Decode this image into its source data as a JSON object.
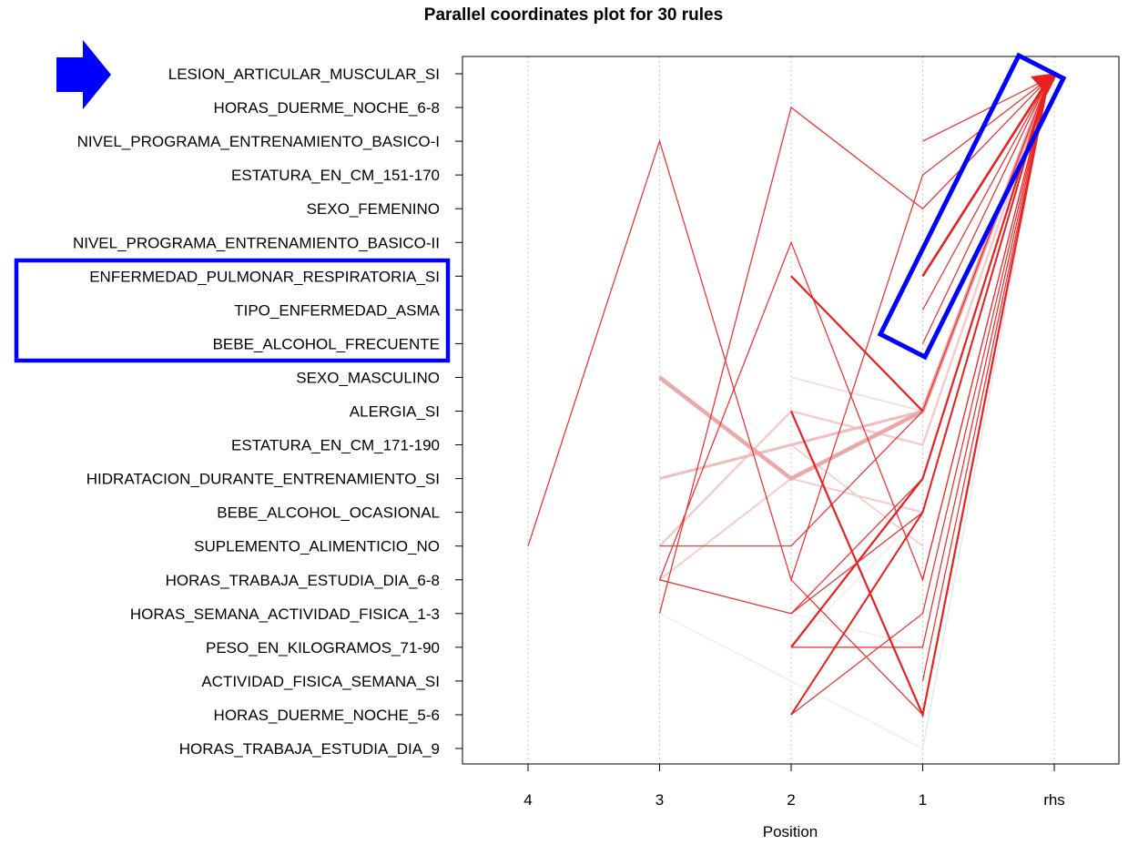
{
  "chart_data": {
    "type": "parallel-coordinates",
    "title": "Parallel coordinates plot for 30 rules",
    "xlabel": "Position",
    "x_ticks": [
      "4",
      "3",
      "2",
      "1",
      "rhs"
    ],
    "items": [
      "LESION_ARTICULAR_MUSCULAR_SI",
      "HORAS_DUERME_NOCHE_6-8",
      "NIVEL_PROGRAMA_ENTRENAMIENTO_BASICO-I",
      "ESTATURA_EN_CM_151-170",
      "SEXO_FEMENINO",
      "NIVEL_PROGRAMA_ENTRENAMIENTO_BASICO-II",
      "ENFERMEDAD_PULMONAR_RESPIRATORIA_SI",
      "TIPO_ENFERMEDAD_ASMA",
      "BEBE_ALCOHOL_FRECUENTE",
      "SEXO_MASCULINO",
      "ALERGIA_SI",
      "ESTATURA_EN_CM_171-190",
      "HIDRATACION_DURANTE_ENTRENAMIENTO_SI",
      "BEBE_ALCOHOL_OCASIONAL",
      "SUPLEMENTO_ALIMENTICIO_NO",
      "HORAS_TRABAJA_ESTUDIA_DIA_6-8",
      "HORAS_SEMANA_ACTIVIDAD_FISICA_1-3",
      "PESO_EN_KILOGRAMOS_71-90",
      "ACTIVIDAD_FISICA_SEMANA_SI",
      "HORAS_DUERME_NOCHE_5-6",
      "HORAS_TRABAJA_ESTUDIA_DIA_9"
    ],
    "rules": [
      {
        "path": [
          [
            4,
            14
          ],
          [
            3,
            2
          ],
          [
            2,
            15
          ],
          [
            1,
            3
          ],
          [
            0,
            0
          ]
        ],
        "color": "#ee2a2a",
        "w": 1.2
      },
      {
        "path": [
          [
            3,
            16
          ],
          [
            2,
            1
          ],
          [
            1,
            4
          ],
          [
            0,
            0
          ]
        ],
        "color": "#ee2a2a",
        "w": 1.2
      },
      {
        "path": [
          [
            3,
            15
          ],
          [
            2,
            16
          ],
          [
            1,
            13
          ],
          [
            0,
            0
          ]
        ],
        "color": "#ee2a2a",
        "w": 1.2
      },
      {
        "path": [
          [
            3,
            15
          ],
          [
            2,
            5
          ],
          [
            1,
            15
          ],
          [
            0,
            0
          ]
        ],
        "color": "#ee2a2a",
        "w": 1.2
      },
      {
        "path": [
          [
            3,
            14
          ],
          [
            2,
            14
          ],
          [
            1,
            10
          ],
          [
            0,
            0
          ]
        ],
        "color": "#ee2a2a",
        "w": 1.2
      },
      {
        "path": [
          [
            2,
            6
          ],
          [
            1,
            10
          ]
        ],
        "color": "#e82020",
        "w": 2.2
      },
      {
        "path": [
          [
            2,
            10
          ],
          [
            1,
            19
          ],
          [
            0,
            0
          ]
        ],
        "color": "#e82020",
        "w": 2.2
      },
      {
        "path": [
          [
            2,
            17
          ],
          [
            1,
            12
          ],
          [
            0,
            0
          ]
        ],
        "color": "#e82020",
        "w": 2.2
      },
      {
        "path": [
          [
            2,
            19
          ],
          [
            1,
            13
          ],
          [
            0,
            0
          ]
        ],
        "color": "#e82020",
        "w": 2.0
      },
      {
        "path": [
          [
            2,
            17
          ],
          [
            1,
            17
          ],
          [
            0,
            0
          ]
        ],
        "color": "#ee2a2a",
        "w": 1.2
      },
      {
        "path": [
          [
            2,
            19
          ],
          [
            1,
            16
          ],
          [
            0,
            0
          ]
        ],
        "color": "#ee2a2a",
        "w": 1.2
      },
      {
        "path": [
          [
            2,
            15
          ],
          [
            1,
            19
          ]
        ],
        "color": "#ee2a2a",
        "w": 1.2
      },
      {
        "path": [
          [
            2,
            16
          ],
          [
            1,
            12
          ],
          [
            0,
            0
          ]
        ],
        "color": "#ee2a2a",
        "w": 1.2
      },
      {
        "path": [
          [
            1,
            6
          ],
          [
            0,
            0
          ]
        ],
        "color": "#e82020",
        "w": 2.6
      },
      {
        "path": [
          [
            1,
            7
          ],
          [
            0,
            0
          ]
        ],
        "color": "#ee2a2a",
        "w": 1.2
      },
      {
        "path": [
          [
            1,
            8
          ],
          [
            0,
            0
          ]
        ],
        "color": "#ee2a2a",
        "w": 1.2
      },
      {
        "path": [
          [
            1,
            15
          ],
          [
            0,
            0
          ]
        ],
        "color": "#ee2a2a",
        "w": 1.2
      },
      {
        "path": [
          [
            1,
            18
          ],
          [
            0,
            0
          ]
        ],
        "color": "#ee2a2a",
        "w": 1.2
      },
      {
        "path": [
          [
            3,
            9
          ],
          [
            2,
            12
          ],
          [
            1,
            10
          ],
          [
            0,
            0
          ]
        ],
        "color": "#eba8a8",
        "w": 4.5
      },
      {
        "path": [
          [
            3,
            12
          ],
          [
            2,
            11
          ],
          [
            1,
            10
          ],
          [
            0,
            0
          ]
        ],
        "color": "#f0bcbc",
        "w": 3.0
      },
      {
        "path": [
          [
            3,
            14
          ],
          [
            2,
            10
          ],
          [
            1,
            11
          ],
          [
            0,
            0
          ]
        ],
        "color": "#f4cccc",
        "w": 2.5
      },
      {
        "path": [
          [
            3,
            15
          ],
          [
            2,
            12
          ],
          [
            1,
            13
          ],
          [
            0,
            0
          ]
        ],
        "color": "#f4cccc",
        "w": 2.0
      },
      {
        "path": [
          [
            2,
            9
          ],
          [
            1,
            10
          ],
          [
            0,
            0
          ]
        ],
        "color": "#f6d8d8",
        "w": 1.5
      },
      {
        "path": [
          [
            3,
            16
          ],
          [
            2,
            18
          ],
          [
            1,
            20
          ],
          [
            0,
            0
          ]
        ],
        "color": "#eeeeee",
        "w": 1.5
      },
      {
        "path": [
          [
            2,
            17
          ],
          [
            1,
            13
          ],
          [
            0,
            0
          ]
        ],
        "color": "#ececec",
        "w": 1.3
      },
      {
        "path": [
          [
            2,
            16
          ],
          [
            1,
            17
          ],
          [
            0,
            0
          ]
        ],
        "color": "#ececec",
        "w": 1.3
      },
      {
        "path": [
          [
            1,
            20
          ],
          [
            0,
            0
          ]
        ],
        "color": "#e8e8e8",
        "w": 1.3
      },
      {
        "path": [
          [
            2,
            11
          ],
          [
            1,
            14
          ]
        ],
        "color": "#f2c8c8",
        "w": 1.5
      },
      {
        "path": [
          [
            3,
            15
          ],
          [
            2,
            16
          ]
        ],
        "color": "#eaeaea",
        "w": 1.2
      },
      {
        "path": [
          [
            1,
            2
          ],
          [
            0,
            0
          ]
        ],
        "color": "#ee2a2a",
        "w": 1.2
      }
    ]
  },
  "annotations": {
    "arrow_color": "#0000ff",
    "box_color": "#0000ff"
  }
}
